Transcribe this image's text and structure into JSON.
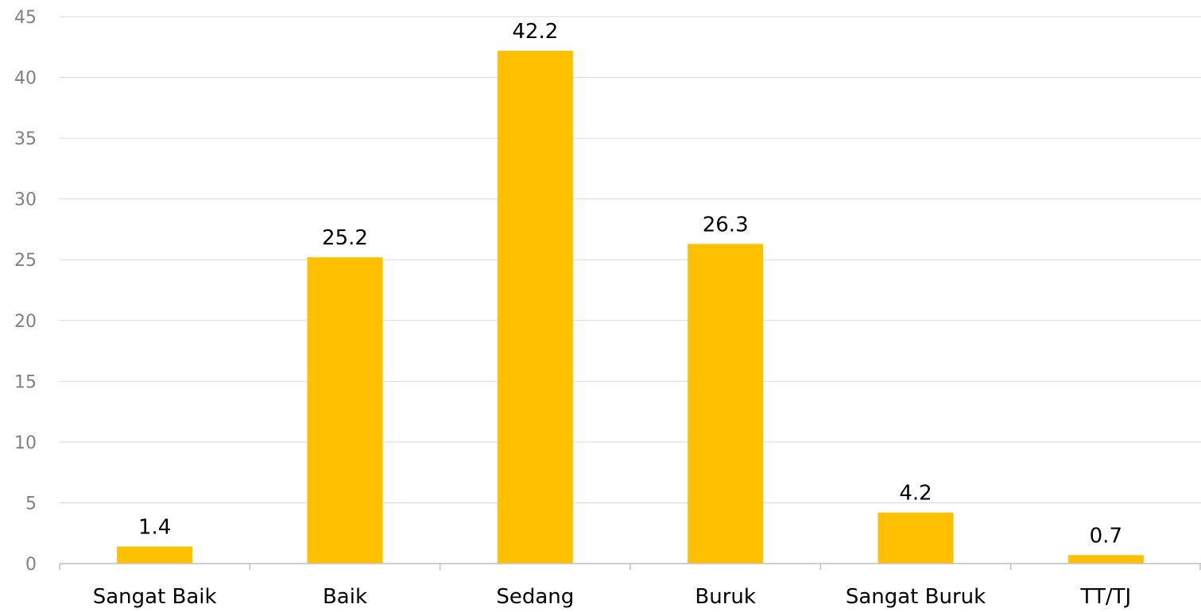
{
  "chart_data": {
    "type": "bar",
    "title": "",
    "xlabel": "",
    "ylabel": "",
    "categories": [
      "Sangat Baik",
      "Baik",
      "Sedang",
      "Buruk",
      "Sangat Buruk",
      "TT/TJ"
    ],
    "values": [
      1.4,
      25.2,
      42.2,
      26.3,
      4.2,
      0.7
    ],
    "ylim": [
      0,
      45
    ],
    "yticks": [
      0,
      5,
      10,
      15,
      20,
      25,
      30,
      35,
      40,
      45
    ],
    "grid": true,
    "legend": "none",
    "data_labels": [
      "1.4",
      "25.2",
      "42.2",
      "26.3",
      "4.2",
      "0.7"
    ],
    "colors": {
      "bar": "#FFC000",
      "grid": "#D9D9D9",
      "axis": "#BFBFBF",
      "tick_text": "#808080",
      "label_text": "#000000"
    }
  }
}
